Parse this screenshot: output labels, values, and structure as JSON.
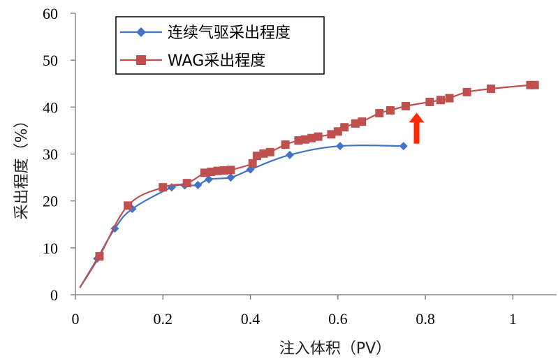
{
  "chart_data": {
    "type": "line",
    "xlabel": "注入体积（PV）",
    "ylabel": "采出程度（%）",
    "xlim": [
      0,
      1.1
    ],
    "ylim": [
      0,
      60
    ],
    "x_ticks": [
      "0",
      "0.2",
      "0.4",
      "0.6",
      "0.8",
      "1"
    ],
    "y_ticks": [
      "0",
      "10",
      "20",
      "30",
      "40",
      "50",
      "60"
    ],
    "grid": false,
    "legend": {
      "position": "top-left, inside plot",
      "boxed": true
    },
    "series": [
      {
        "name": "连续气驱采出程度",
        "color": "#4472C4",
        "marker": "diamond",
        "points": [
          [
            0.01,
            1.5
          ],
          [
            0.05,
            7.7
          ],
          [
            0.09,
            14.1
          ],
          [
            0.13,
            18.3
          ],
          [
            0.22,
            22.9
          ],
          [
            0.25,
            23.3
          ],
          [
            0.28,
            23.4
          ],
          [
            0.305,
            24.6
          ],
          [
            0.355,
            25.0
          ],
          [
            0.4,
            26.7
          ],
          [
            0.49,
            29.8
          ],
          [
            0.605,
            31.7
          ],
          [
            0.75,
            31.7
          ]
        ]
      },
      {
        "name": "WAG采出程度",
        "color": "#C0504D",
        "marker": "square",
        "points": [
          [
            0.01,
            1.5
          ],
          [
            0.055,
            8.2
          ],
          [
            0.12,
            19.0
          ],
          [
            0.2,
            22.9
          ],
          [
            0.255,
            23.8
          ],
          [
            0.295,
            26.0
          ],
          [
            0.31,
            26.2
          ],
          [
            0.325,
            26.4
          ],
          [
            0.34,
            26.5
          ],
          [
            0.355,
            26.6
          ],
          [
            0.405,
            28.0
          ],
          [
            0.415,
            29.6
          ],
          [
            0.43,
            30.1
          ],
          [
            0.445,
            30.4
          ],
          [
            0.48,
            32.0
          ],
          [
            0.51,
            32.9
          ],
          [
            0.525,
            33.1
          ],
          [
            0.54,
            33.4
          ],
          [
            0.555,
            33.7
          ],
          [
            0.585,
            34.2
          ],
          [
            0.6,
            34.8
          ],
          [
            0.615,
            35.7
          ],
          [
            0.64,
            36.5
          ],
          [
            0.655,
            36.9
          ],
          [
            0.695,
            38.7
          ],
          [
            0.72,
            39.3
          ],
          [
            0.755,
            40.2
          ],
          [
            0.81,
            41.1
          ],
          [
            0.835,
            41.5
          ],
          [
            0.855,
            41.9
          ],
          [
            0.895,
            43.2
          ],
          [
            0.95,
            43.9
          ],
          [
            1.04,
            44.7
          ],
          [
            1.05,
            44.7
          ]
        ]
      }
    ],
    "annotation": {
      "type": "arrow",
      "color": "#FF2A00",
      "x": 0.78,
      "y_from": 32.2,
      "y_to": 38.8,
      "direction": "up"
    }
  }
}
